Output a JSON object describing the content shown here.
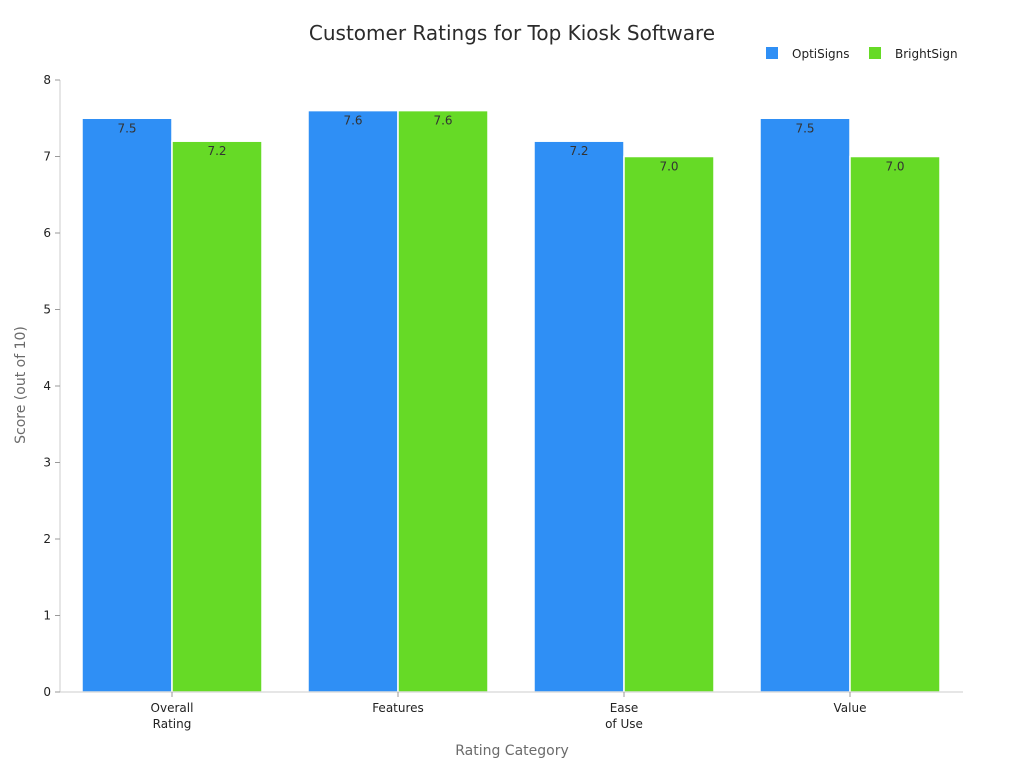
{
  "chart_data": {
    "type": "bar",
    "title": "Customer Ratings for Top Kiosk Software",
    "xlabel": "Rating Category",
    "ylabel": "Score (out of 10)",
    "categories": [
      [
        "Overall",
        "Rating"
      ],
      [
        "Features"
      ],
      [
        "Ease",
        "of Use"
      ],
      [
        "Value"
      ]
    ],
    "series": [
      {
        "name": "OptiSigns",
        "color": "#2f8ff5",
        "values": [
          7.5,
          7.6,
          7.2,
          7.5
        ],
        "labels": [
          "7.5",
          "7.6",
          "7.2",
          "7.5"
        ]
      },
      {
        "name": "BrightSign",
        "color": "#66da26",
        "values": [
          7.2,
          7.6,
          7.0,
          7.0
        ],
        "labels": [
          "7.2",
          "7.6",
          "7.0",
          "7.0"
        ]
      }
    ],
    "ylim": [
      0,
      8
    ],
    "yticks": [
      "0",
      "1",
      "2",
      "3",
      "4",
      "5",
      "6",
      "7",
      "8"
    ],
    "grid": false,
    "legend_position": "top-right"
  }
}
